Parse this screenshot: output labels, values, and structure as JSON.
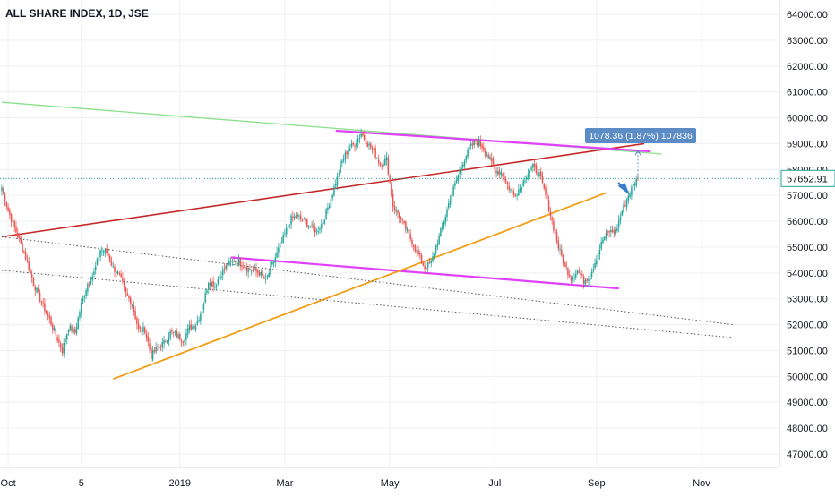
{
  "chart_data": {
    "type": "candlestick",
    "title": "ALL SHARE INDEX, 1D, JSE",
    "xlabel": "",
    "ylabel": "",
    "ylim": [
      46600,
      64500
    ],
    "yticks": [
      47000,
      48000,
      49000,
      50000,
      51000,
      52000,
      53000,
      54000,
      55000,
      56000,
      57000,
      58000,
      59000,
      60000,
      61000,
      62000,
      63000,
      64000
    ],
    "ytick_labels": [
      "47000.00",
      "48000.00",
      "49000.00",
      "50000.00",
      "51000.00",
      "52000.00",
      "53000.00",
      "54000.00",
      "55000.00",
      "56000.00",
      "57000.00",
      "58000.00",
      "59000.00",
      "60000.00",
      "61000.00",
      "62000.00",
      "63000.00",
      "64000.00"
    ],
    "xticks": [
      "Oct",
      "5",
      "2019",
      "Mar",
      "May",
      "Jul",
      "Sep",
      "Nov"
    ],
    "grid": true,
    "up_color": "#26a69a",
    "down_color": "#ef5350",
    "last_price": "57652.91",
    "last_price_color": "#26a69a",
    "measure_label": "1078.36 (1.87%) 107836",
    "measure_color": "#5b8cc6",
    "price_anchors": [
      [
        0,
        57300
      ],
      [
        4,
        56400
      ],
      [
        9,
        55600
      ],
      [
        15,
        54600
      ],
      [
        20,
        53600
      ],
      [
        24,
        53000
      ],
      [
        30,
        52200
      ],
      [
        34,
        51600
      ],
      [
        38,
        51000
      ],
      [
        42,
        51900
      ],
      [
        46,
        51700
      ],
      [
        50,
        52800
      ],
      [
        54,
        53600
      ],
      [
        58,
        54000
      ],
      [
        62,
        54900
      ],
      [
        66,
        54800
      ],
      [
        70,
        54200
      ],
      [
        74,
        53900
      ],
      [
        78,
        53200
      ],
      [
        82,
        52800
      ],
      [
        86,
        51800
      ],
      [
        90,
        51800
      ],
      [
        94,
        50800
      ],
      [
        98,
        51100
      ],
      [
        102,
        51300
      ],
      [
        106,
        51700
      ],
      [
        110,
        51600
      ],
      [
        114,
        51400
      ],
      [
        118,
        51900
      ],
      [
        122,
        52000
      ],
      [
        126,
        52600
      ],
      [
        130,
        53700
      ],
      [
        134,
        53500
      ],
      [
        138,
        54000
      ],
      [
        142,
        54300
      ],
      [
        146,
        54500
      ],
      [
        150,
        54400
      ],
      [
        154,
        54200
      ],
      [
        158,
        54100
      ],
      [
        162,
        54000
      ],
      [
        166,
        53700
      ],
      [
        170,
        54300
      ],
      [
        174,
        54900
      ],
      [
        178,
        55500
      ],
      [
        182,
        56100
      ],
      [
        186,
        56200
      ],
      [
        190,
        56000
      ],
      [
        194,
        55800
      ],
      [
        198,
        55600
      ],
      [
        202,
        56000
      ],
      [
        206,
        56700
      ],
      [
        210,
        57500
      ],
      [
        214,
        58300
      ],
      [
        218,
        58800
      ],
      [
        222,
        59000
      ],
      [
        226,
        59400
      ],
      [
        230,
        59000
      ],
      [
        234,
        58700
      ],
      [
        238,
        58200
      ],
      [
        242,
        58400
      ],
      [
        246,
        56600
      ],
      [
        250,
        56200
      ],
      [
        254,
        55700
      ],
      [
        258,
        55200
      ],
      [
        262,
        54700
      ],
      [
        266,
        54200
      ],
      [
        270,
        54400
      ],
      [
        274,
        55200
      ],
      [
        278,
        56000
      ],
      [
        282,
        56900
      ],
      [
        286,
        57600
      ],
      [
        290,
        58300
      ],
      [
        294,
        58800
      ],
      [
        298,
        59100
      ],
      [
        302,
        58900
      ],
      [
        306,
        58500
      ],
      [
        310,
        58000
      ],
      [
        314,
        57900
      ],
      [
        318,
        57400
      ],
      [
        322,
        57000
      ],
      [
        326,
        57300
      ],
      [
        330,
        57800
      ],
      [
        334,
        58100
      ],
      [
        338,
        57800
      ],
      [
        342,
        57000
      ],
      [
        346,
        56000
      ],
      [
        350,
        55000
      ],
      [
        354,
        54300
      ],
      [
        358,
        53800
      ],
      [
        362,
        54100
      ],
      [
        366,
        53700
      ],
      [
        370,
        53900
      ],
      [
        374,
        54600
      ],
      [
        378,
        55300
      ],
      [
        382,
        55600
      ],
      [
        386,
        55600
      ],
      [
        390,
        56400
      ],
      [
        394,
        57000
      ],
      [
        398,
        57500
      ],
      [
        400,
        57653
      ]
    ],
    "trendlines": [
      {
        "color": "#8be08b",
        "width": 1.3,
        "dash": "",
        "p1": [
          0,
          60600
        ],
        "p2": [
          415,
          58600
        ]
      },
      {
        "color": "#c62828",
        "width": 1.6,
        "dash": "",
        "p1": [
          0,
          55400
        ],
        "p2": [
          404,
          59000
        ]
      },
      {
        "color": "#e040fb",
        "width": 2.2,
        "dash": "",
        "p1": [
          210,
          59500
        ],
        "p2": [
          408,
          58700
        ]
      },
      {
        "color": "#e040fb",
        "width": 2.2,
        "dash": "",
        "p1": [
          144,
          54600
        ],
        "p2": [
          388,
          53400
        ]
      },
      {
        "color": "#f39c12",
        "width": 1.8,
        "dash": "",
        "p1": [
          70,
          49900
        ],
        "p2": [
          380,
          57100
        ]
      },
      {
        "color": "#555555",
        "width": 1,
        "dash": "1.5,2.5",
        "p1": [
          0,
          55400
        ],
        "p2": [
          460,
          52000
        ]
      },
      {
        "color": "#555555",
        "width": 1,
        "dash": "1.5,2.5",
        "p1": [
          0,
          54100
        ],
        "p2": [
          460,
          51500
        ]
      }
    ],
    "horizontal_dotted": {
      "value": 57653,
      "color": "#26a69a"
    }
  }
}
